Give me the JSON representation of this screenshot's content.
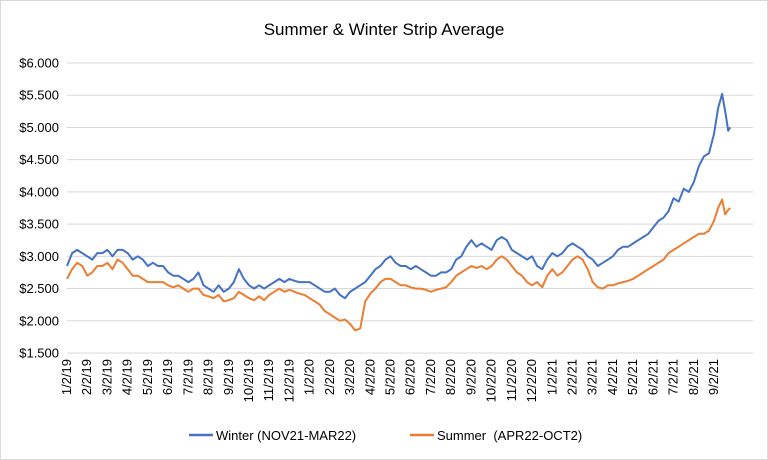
{
  "chart_data": {
    "type": "line",
    "title": "Summer & Winter Strip Average",
    "xlabel": "",
    "ylabel": "",
    "ylim": [
      1.5,
      6.0
    ],
    "grid": true,
    "legend_position": "bottom",
    "y_ticks": [
      "$1.500",
      "$2.000",
      "$2.500",
      "$3.000",
      "$3.500",
      "$4.000",
      "$4.500",
      "$5.000",
      "$5.500",
      "$6.000"
    ],
    "y_tick_values": [
      1.5,
      2.0,
      2.5,
      3.0,
      3.5,
      4.0,
      4.5,
      5.0,
      5.5,
      6.0
    ],
    "x_ticks": [
      "1/2/19",
      "2/2/19",
      "3/2/19",
      "4/2/19",
      "5/2/19",
      "6/2/19",
      "7/2/19",
      "8/2/19",
      "9/2/19",
      "10/2/19",
      "11/2/19",
      "12/2/19",
      "1/2/20",
      "2/2/20",
      "3/2/20",
      "4/2/20",
      "5/2/20",
      "6/2/20",
      "7/2/20",
      "8/2/20",
      "9/2/20",
      "10/2/20",
      "11/2/20",
      "12/2/20",
      "1/2/21",
      "2/2/21",
      "3/2/21",
      "4/2/21",
      "5/2/21",
      "6/2/21",
      "7/2/21",
      "8/2/21",
      "9/2/21"
    ],
    "x_tick_index": [
      0,
      1,
      2,
      3,
      4,
      5,
      6,
      7,
      8,
      9,
      10,
      11,
      12,
      13,
      14,
      15,
      16,
      17,
      18,
      19,
      20,
      21,
      22,
      23,
      24,
      25,
      26,
      27,
      28,
      29,
      30,
      31,
      32
    ],
    "x_max_index": 32.8,
    "series": [
      {
        "name": "Winter (NOV21-MAR22)",
        "color": "#4472C4",
        "points": [
          [
            0.0,
            2.85
          ],
          [
            0.25,
            3.05
          ],
          [
            0.5,
            3.1
          ],
          [
            0.75,
            3.05
          ],
          [
            1.0,
            3.0
          ],
          [
            1.25,
            2.95
          ],
          [
            1.5,
            3.05
          ],
          [
            1.75,
            3.05
          ],
          [
            2.0,
            3.1
          ],
          [
            2.25,
            3.0
          ],
          [
            2.5,
            3.1
          ],
          [
            2.75,
            3.1
          ],
          [
            3.0,
            3.05
          ],
          [
            3.25,
            2.95
          ],
          [
            3.5,
            3.0
          ],
          [
            3.75,
            2.95
          ],
          [
            4.0,
            2.85
          ],
          [
            4.25,
            2.9
          ],
          [
            4.5,
            2.85
          ],
          [
            4.75,
            2.85
          ],
          [
            5.0,
            2.75
          ],
          [
            5.25,
            2.7
          ],
          [
            5.5,
            2.7
          ],
          [
            5.75,
            2.65
          ],
          [
            6.0,
            2.6
          ],
          [
            6.25,
            2.65
          ],
          [
            6.5,
            2.75
          ],
          [
            6.75,
            2.55
          ],
          [
            7.0,
            2.5
          ],
          [
            7.25,
            2.45
          ],
          [
            7.5,
            2.55
          ],
          [
            7.75,
            2.45
          ],
          [
            8.0,
            2.5
          ],
          [
            8.25,
            2.6
          ],
          [
            8.5,
            2.8
          ],
          [
            8.75,
            2.65
          ],
          [
            9.0,
            2.55
          ],
          [
            9.25,
            2.5
          ],
          [
            9.5,
            2.55
          ],
          [
            9.75,
            2.5
          ],
          [
            10.0,
            2.55
          ],
          [
            10.25,
            2.6
          ],
          [
            10.5,
            2.65
          ],
          [
            10.75,
            2.6
          ],
          [
            11.0,
            2.65
          ],
          [
            11.25,
            2.62
          ],
          [
            11.5,
            2.6
          ],
          [
            11.75,
            2.6
          ],
          [
            12.0,
            2.6
          ],
          [
            12.25,
            2.55
          ],
          [
            12.5,
            2.5
          ],
          [
            12.75,
            2.45
          ],
          [
            13.0,
            2.45
          ],
          [
            13.25,
            2.5
          ],
          [
            13.5,
            2.4
          ],
          [
            13.75,
            2.35
          ],
          [
            14.0,
            2.45
          ],
          [
            14.25,
            2.5
          ],
          [
            14.5,
            2.55
          ],
          [
            14.75,
            2.6
          ],
          [
            15.0,
            2.7
          ],
          [
            15.25,
            2.8
          ],
          [
            15.5,
            2.85
          ],
          [
            15.75,
            2.95
          ],
          [
            16.0,
            3.0
          ],
          [
            16.25,
            2.9
          ],
          [
            16.5,
            2.85
          ],
          [
            16.75,
            2.85
          ],
          [
            17.0,
            2.8
          ],
          [
            17.25,
            2.85
          ],
          [
            17.5,
            2.8
          ],
          [
            17.75,
            2.75
          ],
          [
            18.0,
            2.7
          ],
          [
            18.25,
            2.7
          ],
          [
            18.5,
            2.75
          ],
          [
            18.75,
            2.75
          ],
          [
            19.0,
            2.8
          ],
          [
            19.25,
            2.95
          ],
          [
            19.5,
            3.0
          ],
          [
            19.75,
            3.15
          ],
          [
            20.0,
            3.25
          ],
          [
            20.25,
            3.15
          ],
          [
            20.5,
            3.2
          ],
          [
            20.75,
            3.15
          ],
          [
            21.0,
            3.1
          ],
          [
            21.25,
            3.25
          ],
          [
            21.5,
            3.3
          ],
          [
            21.75,
            3.25
          ],
          [
            22.0,
            3.1
          ],
          [
            22.25,
            3.05
          ],
          [
            22.5,
            3.0
          ],
          [
            22.75,
            2.95
          ],
          [
            23.0,
            3.0
          ],
          [
            23.25,
            2.85
          ],
          [
            23.5,
            2.8
          ],
          [
            23.75,
            2.95
          ],
          [
            24.0,
            3.05
          ],
          [
            24.25,
            3.0
          ],
          [
            24.5,
            3.05
          ],
          [
            24.75,
            3.15
          ],
          [
            25.0,
            3.2
          ],
          [
            25.25,
            3.15
          ],
          [
            25.5,
            3.1
          ],
          [
            25.75,
            3.0
          ],
          [
            26.0,
            2.95
          ],
          [
            26.25,
            2.85
          ],
          [
            26.5,
            2.9
          ],
          [
            26.75,
            2.95
          ],
          [
            27.0,
            3.0
          ],
          [
            27.25,
            3.1
          ],
          [
            27.5,
            3.15
          ],
          [
            27.75,
            3.15
          ],
          [
            28.0,
            3.2
          ],
          [
            28.25,
            3.25
          ],
          [
            28.5,
            3.3
          ],
          [
            28.75,
            3.35
          ],
          [
            29.0,
            3.45
          ],
          [
            29.25,
            3.55
          ],
          [
            29.5,
            3.6
          ],
          [
            29.75,
            3.7
          ],
          [
            30.0,
            3.9
          ],
          [
            30.25,
            3.85
          ],
          [
            30.5,
            4.05
          ],
          [
            30.75,
            4.0
          ],
          [
            31.0,
            4.15
          ],
          [
            31.25,
            4.4
          ],
          [
            31.5,
            4.55
          ],
          [
            31.75,
            4.6
          ],
          [
            32.0,
            4.9
          ],
          [
            32.2,
            5.3
          ],
          [
            32.4,
            5.52
          ],
          [
            32.55,
            5.25
          ],
          [
            32.7,
            4.95
          ],
          [
            32.8,
            5.0
          ]
        ]
      },
      {
        "name": "Summer  (APR22-OCT2)",
        "color": "#ED7D31",
        "points": [
          [
            0.0,
            2.65
          ],
          [
            0.25,
            2.8
          ],
          [
            0.5,
            2.9
          ],
          [
            0.75,
            2.85
          ],
          [
            1.0,
            2.7
          ],
          [
            1.25,
            2.75
          ],
          [
            1.5,
            2.85
          ],
          [
            1.75,
            2.85
          ],
          [
            2.0,
            2.9
          ],
          [
            2.25,
            2.8
          ],
          [
            2.5,
            2.95
          ],
          [
            2.75,
            2.9
          ],
          [
            3.0,
            2.8
          ],
          [
            3.25,
            2.7
          ],
          [
            3.5,
            2.7
          ],
          [
            3.75,
            2.65
          ],
          [
            4.0,
            2.6
          ],
          [
            4.25,
            2.6
          ],
          [
            4.5,
            2.6
          ],
          [
            4.75,
            2.6
          ],
          [
            5.0,
            2.55
          ],
          [
            5.25,
            2.52
          ],
          [
            5.5,
            2.55
          ],
          [
            5.75,
            2.5
          ],
          [
            6.0,
            2.45
          ],
          [
            6.25,
            2.5
          ],
          [
            6.5,
            2.5
          ],
          [
            6.75,
            2.4
          ],
          [
            7.0,
            2.38
          ],
          [
            7.25,
            2.35
          ],
          [
            7.5,
            2.4
          ],
          [
            7.75,
            2.3
          ],
          [
            8.0,
            2.32
          ],
          [
            8.25,
            2.35
          ],
          [
            8.5,
            2.45
          ],
          [
            8.75,
            2.4
          ],
          [
            9.0,
            2.35
          ],
          [
            9.25,
            2.32
          ],
          [
            9.5,
            2.38
          ],
          [
            9.75,
            2.32
          ],
          [
            10.0,
            2.4
          ],
          [
            10.25,
            2.45
          ],
          [
            10.5,
            2.5
          ],
          [
            10.75,
            2.45
          ],
          [
            11.0,
            2.48
          ],
          [
            11.25,
            2.45
          ],
          [
            11.5,
            2.42
          ],
          [
            11.75,
            2.4
          ],
          [
            12.0,
            2.35
          ],
          [
            12.25,
            2.3
          ],
          [
            12.5,
            2.25
          ],
          [
            12.75,
            2.15
          ],
          [
            13.0,
            2.1
          ],
          [
            13.25,
            2.05
          ],
          [
            13.5,
            2.0
          ],
          [
            13.75,
            2.02
          ],
          [
            14.0,
            1.95
          ],
          [
            14.25,
            1.85
          ],
          [
            14.5,
            1.88
          ],
          [
            14.75,
            2.3
          ],
          [
            15.0,
            2.42
          ],
          [
            15.25,
            2.5
          ],
          [
            15.5,
            2.6
          ],
          [
            15.75,
            2.65
          ],
          [
            16.0,
            2.65
          ],
          [
            16.25,
            2.6
          ],
          [
            16.5,
            2.55
          ],
          [
            16.75,
            2.55
          ],
          [
            17.0,
            2.52
          ],
          [
            17.25,
            2.5
          ],
          [
            17.5,
            2.5
          ],
          [
            17.75,
            2.48
          ],
          [
            18.0,
            2.45
          ],
          [
            18.25,
            2.48
          ],
          [
            18.5,
            2.5
          ],
          [
            18.75,
            2.52
          ],
          [
            19.0,
            2.6
          ],
          [
            19.25,
            2.7
          ],
          [
            19.5,
            2.75
          ],
          [
            19.75,
            2.8
          ],
          [
            20.0,
            2.85
          ],
          [
            20.25,
            2.82
          ],
          [
            20.5,
            2.85
          ],
          [
            20.75,
            2.8
          ],
          [
            21.0,
            2.85
          ],
          [
            21.25,
            2.95
          ],
          [
            21.5,
            3.0
          ],
          [
            21.75,
            2.95
          ],
          [
            22.0,
            2.85
          ],
          [
            22.25,
            2.75
          ],
          [
            22.5,
            2.7
          ],
          [
            22.75,
            2.6
          ],
          [
            23.0,
            2.55
          ],
          [
            23.25,
            2.6
          ],
          [
            23.5,
            2.52
          ],
          [
            23.75,
            2.7
          ],
          [
            24.0,
            2.8
          ],
          [
            24.25,
            2.7
          ],
          [
            24.5,
            2.75
          ],
          [
            24.75,
            2.85
          ],
          [
            25.0,
            2.95
          ],
          [
            25.25,
            3.0
          ],
          [
            25.5,
            2.95
          ],
          [
            25.75,
            2.8
          ],
          [
            26.0,
            2.6
          ],
          [
            26.25,
            2.52
          ],
          [
            26.5,
            2.5
          ],
          [
            26.75,
            2.55
          ],
          [
            27.0,
            2.55
          ],
          [
            27.25,
            2.58
          ],
          [
            27.5,
            2.6
          ],
          [
            27.75,
            2.62
          ],
          [
            28.0,
            2.65
          ],
          [
            28.25,
            2.7
          ],
          [
            28.5,
            2.75
          ],
          [
            28.75,
            2.8
          ],
          [
            29.0,
            2.85
          ],
          [
            29.25,
            2.9
          ],
          [
            29.5,
            2.95
          ],
          [
            29.75,
            3.05
          ],
          [
            30.0,
            3.1
          ],
          [
            30.25,
            3.15
          ],
          [
            30.5,
            3.2
          ],
          [
            30.75,
            3.25
          ],
          [
            31.0,
            3.3
          ],
          [
            31.25,
            3.35
          ],
          [
            31.5,
            3.35
          ],
          [
            31.75,
            3.4
          ],
          [
            32.0,
            3.55
          ],
          [
            32.2,
            3.75
          ],
          [
            32.4,
            3.88
          ],
          [
            32.55,
            3.65
          ],
          [
            32.7,
            3.72
          ],
          [
            32.8,
            3.75
          ]
        ]
      }
    ]
  }
}
